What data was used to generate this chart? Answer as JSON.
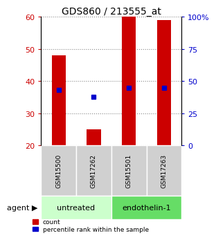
{
  "title": "GDS860 / 213555_at",
  "samples": [
    "GSM15500",
    "GSM17262",
    "GSM15501",
    "GSM17263"
  ],
  "bar_values": [
    48,
    25,
    60,
    59
  ],
  "bar_bottom": 20,
  "percentile_values": [
    43,
    38,
    45,
    45
  ],
  "bar_color": "#cc0000",
  "percentile_color": "#0000cc",
  "left_ylim": [
    20,
    60
  ],
  "right_ylim": [
    0,
    100
  ],
  "left_yticks": [
    20,
    30,
    40,
    50,
    60
  ],
  "right_yticks": [
    0,
    25,
    50,
    75,
    100
  ],
  "right_yticklabels": [
    "0",
    "25",
    "50",
    "75",
    "100%"
  ],
  "groups": [
    {
      "label": "untreated",
      "indices": [
        0,
        1
      ],
      "color": "#ccffcc"
    },
    {
      "label": "endothelin-1",
      "indices": [
        2,
        3
      ],
      "color": "#66dd66"
    }
  ],
  "agent_label": "agent",
  "legend_count_label": "count",
  "legend_pct_label": "percentile rank within the sample",
  "background_color": "#ffffff",
  "bar_width": 0.4,
  "title_fontsize": 10,
  "gsm_fontsize": 6.5,
  "agent_fontsize": 8,
  "group_fontsize": 8,
  "legend_fontsize": 6.5,
  "ytick_fontsize": 8
}
